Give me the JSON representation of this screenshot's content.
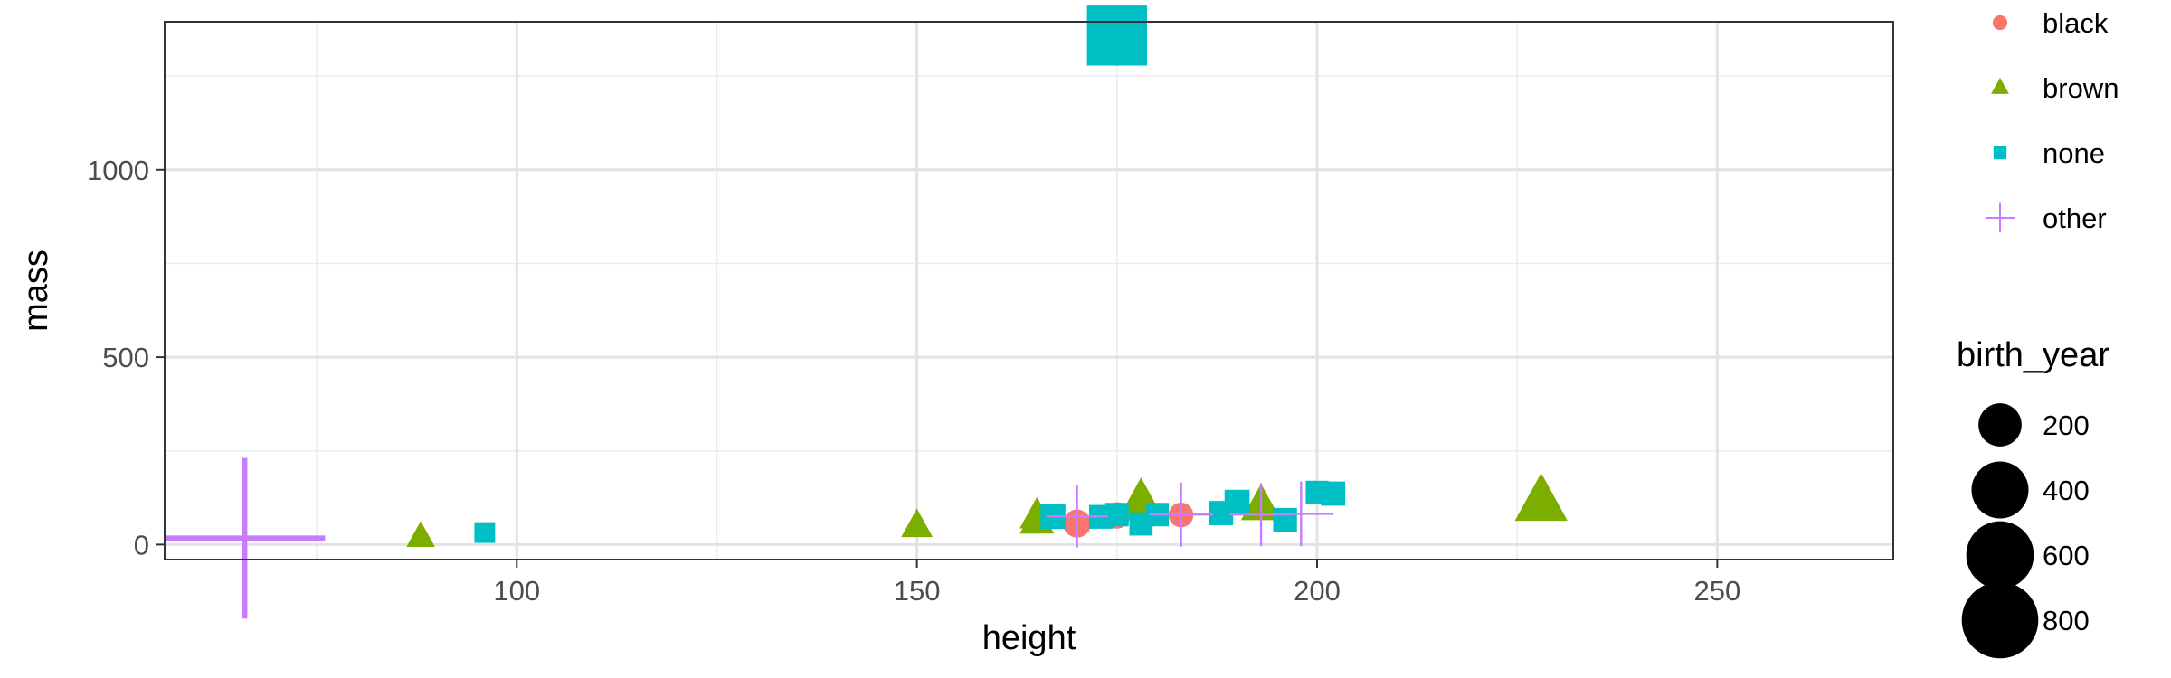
{
  "chart_data": {
    "type": "scatter",
    "title": "",
    "xlabel": "height",
    "ylabel": "mass",
    "xlim": [
      56,
      272
    ],
    "ylim": [
      -40,
      1395
    ],
    "x_ticks": [
      100,
      150,
      200,
      250
    ],
    "y_ticks": [
      0,
      500,
      1000
    ],
    "grid": true,
    "colors": {
      "black": "#F8766D",
      "brown": "#7CAE00",
      "none": "#00BFC4",
      "other": "#C77CFF"
    },
    "legend_color": {
      "title": "",
      "placement": "right",
      "entries": [
        {
          "label": "black",
          "shape": "circle"
        },
        {
          "label": "brown",
          "shape": "triangle"
        },
        {
          "label": "none",
          "shape": "square"
        },
        {
          "label": "other",
          "shape": "plus"
        }
      ]
    },
    "legend_size": {
      "title": "birth_year",
      "placement": "right",
      "entries": [
        200,
        400,
        600,
        800
      ]
    },
    "series": [
      {
        "name": "black",
        "shape": "circle",
        "points": [
          {
            "x": 170,
            "y": 56,
            "birth_year": 60
          },
          {
            "x": 183,
            "y": 79,
            "birth_year": 40
          },
          {
            "x": 178,
            "y": 81,
            "birth_year": 45
          },
          {
            "x": 175,
            "y": 78,
            "birth_year": 50
          }
        ]
      },
      {
        "name": "brown",
        "shape": "triangle",
        "points": [
          {
            "x": 88,
            "y": 20,
            "birth_year": 33
          },
          {
            "x": 150,
            "y": 49,
            "birth_year": 46
          },
          {
            "x": 165,
            "y": 61,
            "birth_year": 60
          },
          {
            "x": 165,
            "y": 75,
            "birth_year": 62
          },
          {
            "x": 178,
            "y": 120,
            "birth_year": 90
          },
          {
            "x": 193,
            "y": 102,
            "birth_year": 95
          },
          {
            "x": 228,
            "y": 112,
            "birth_year": 200
          }
        ]
      },
      {
        "name": "none",
        "shape": "square",
        "points": [
          {
            "x": 96,
            "y": 32,
            "birth_year": 33
          },
          {
            "x": 167,
            "y": 75,
            "birth_year": 60
          },
          {
            "x": 173,
            "y": 74,
            "birth_year": 52
          },
          {
            "x": 175,
            "y": 1358,
            "birth_year": 600
          },
          {
            "x": 175,
            "y": 80,
            "birth_year": 50
          },
          {
            "x": 178,
            "y": 55,
            "birth_year": 48
          },
          {
            "x": 180,
            "y": 80,
            "birth_year": 50
          },
          {
            "x": 188,
            "y": 84,
            "birth_year": 55
          },
          {
            "x": 190,
            "y": 113,
            "birth_year": 60
          },
          {
            "x": 196,
            "y": 66,
            "birth_year": 52
          },
          {
            "x": 200,
            "y": 140,
            "birth_year": 45
          },
          {
            "x": 202,
            "y": 136,
            "birth_year": 55
          }
        ]
      },
      {
        "name": "other",
        "shape": "plus",
        "points": [
          {
            "x": 66,
            "y": 17,
            "birth_year": 896
          },
          {
            "x": 170,
            "y": 75,
            "birth_year": 82
          },
          {
            "x": 183,
            "y": 80,
            "birth_year": 90
          },
          {
            "x": 198,
            "y": 82,
            "birth_year": 92
          },
          {
            "x": 193,
            "y": 80,
            "birth_year": 85
          }
        ]
      }
    ]
  }
}
